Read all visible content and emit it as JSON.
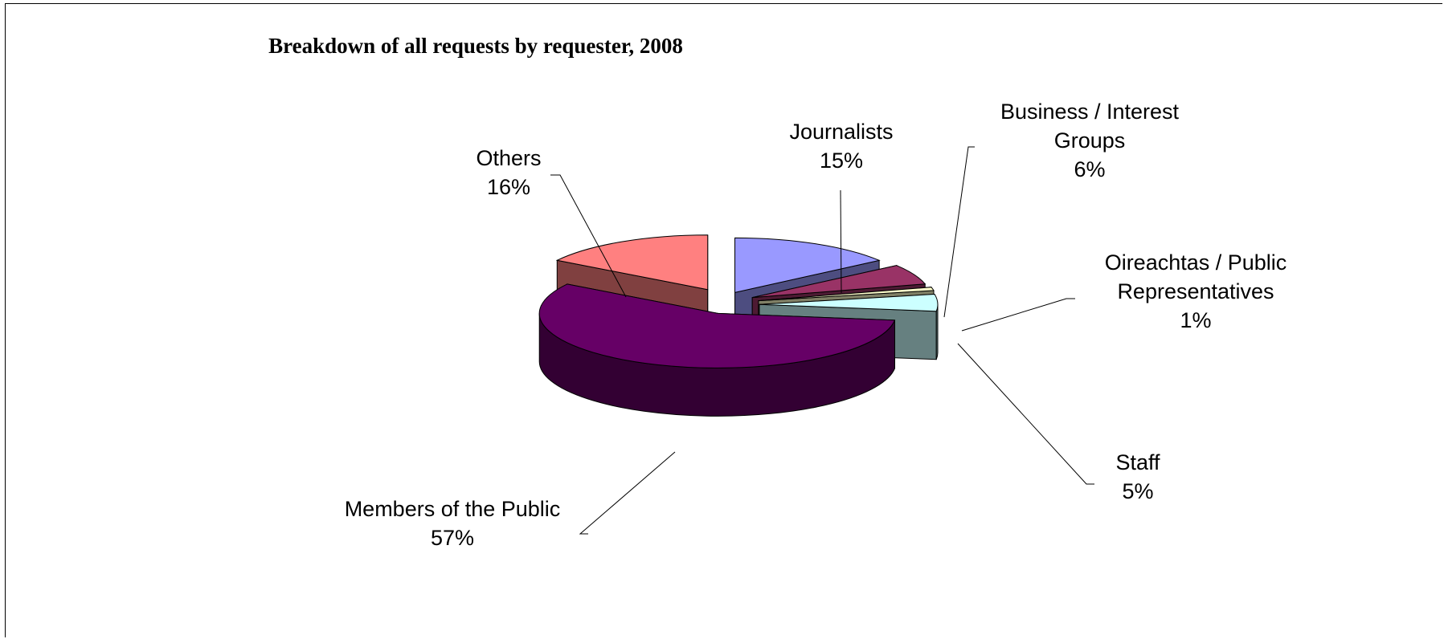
{
  "chart_data": {
    "type": "pie",
    "title": "Breakdown of all requests by requester, 2008",
    "slices": [
      {
        "name": "Journalists",
        "value": 15,
        "label": "15%",
        "color": "#9999ff"
      },
      {
        "name": "Business / Interest Groups",
        "value": 6,
        "label": "6%",
        "color": "#993366"
      },
      {
        "name": "Oireachtas / Public Representatives",
        "value": 1,
        "label": "1%",
        "color": "#ffffcc"
      },
      {
        "name": "Staff",
        "value": 5,
        "label": "5%",
        "color": "#ccffff"
      },
      {
        "name": "Members of the Public",
        "value": 57,
        "label": "57%",
        "color": "#660066"
      },
      {
        "name": "Others",
        "value": 16,
        "label": "16%",
        "color": "#ff8080"
      }
    ],
    "style": "3d-exploded",
    "legend": "none"
  }
}
